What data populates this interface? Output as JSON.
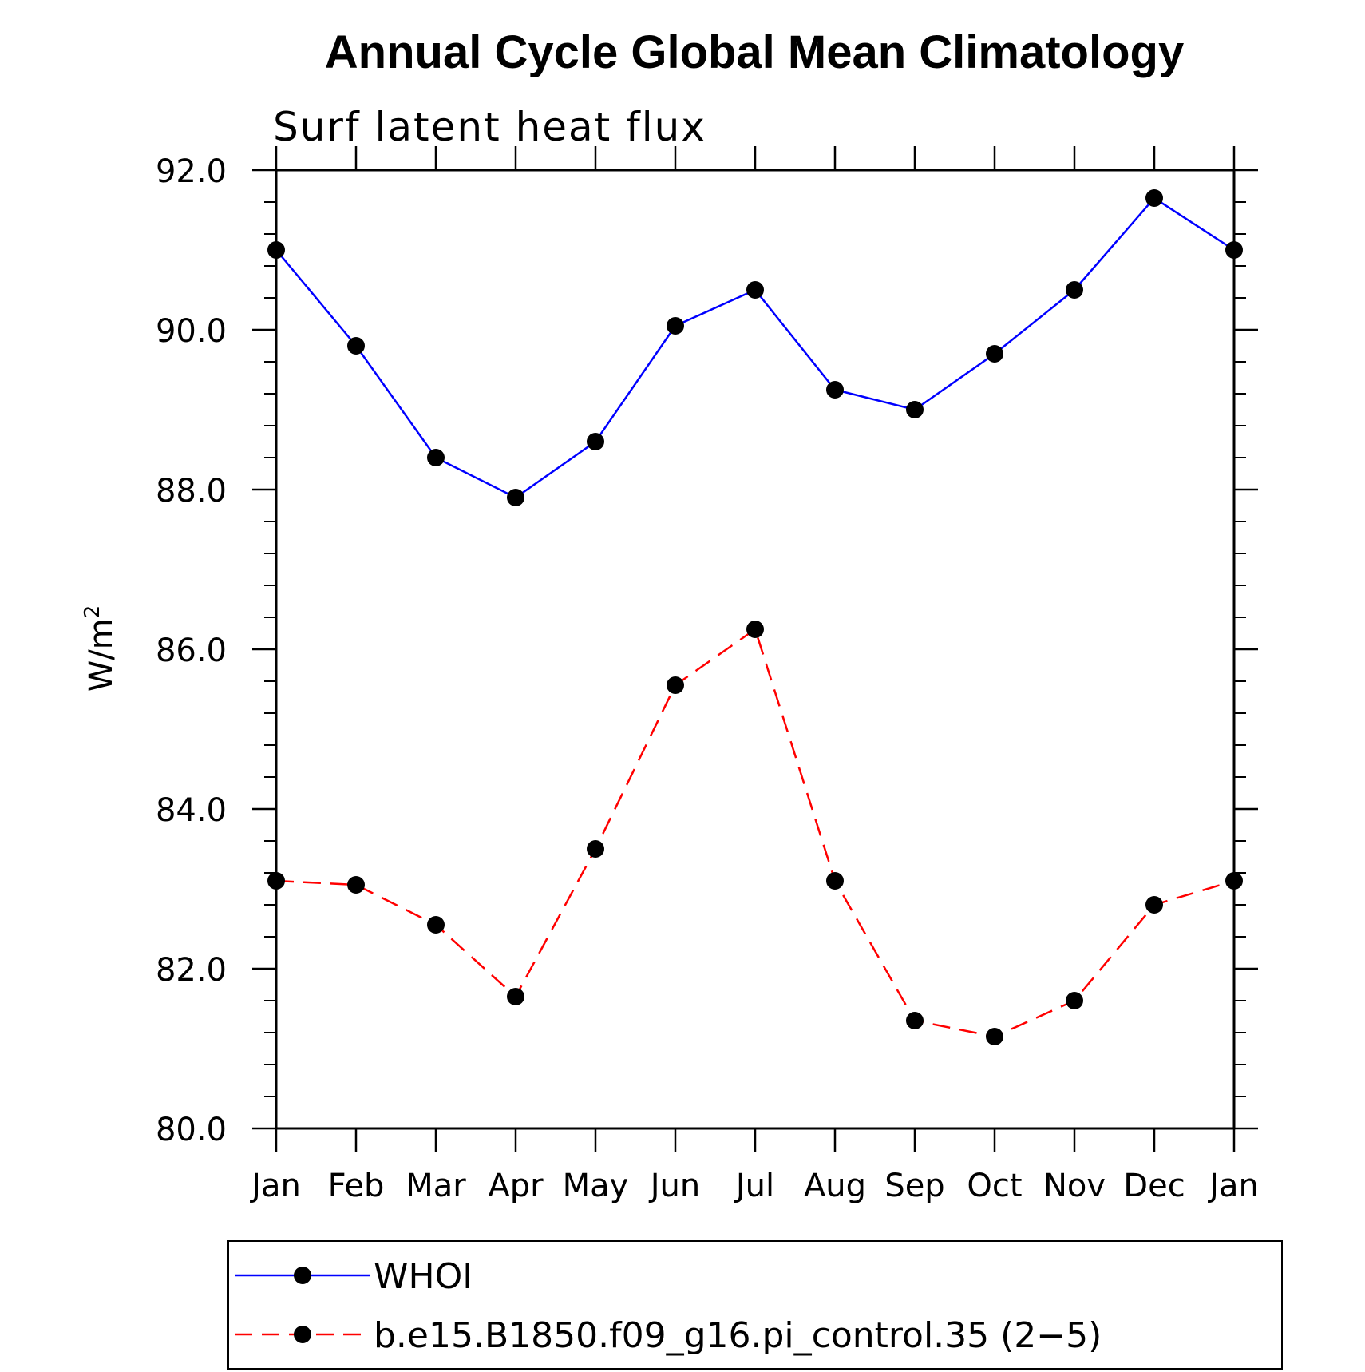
{
  "chart_data": {
    "type": "line",
    "title": "Annual Cycle Global Mean Climatology",
    "subtitle": "Surf latent heat flux",
    "ylabel": "W/m",
    "ylabel_superscript": "2",
    "xlabel": "",
    "categories": [
      "Jan",
      "Feb",
      "Mar",
      "Apr",
      "May",
      "Jun",
      "Jul",
      "Aug",
      "Sep",
      "Oct",
      "Nov",
      "Dec",
      "Jan"
    ],
    "ylim": [
      80.0,
      92.0
    ],
    "yticks": [
      "80.0",
      "82.0",
      "84.0",
      "86.0",
      "88.0",
      "90.0",
      "92.0"
    ],
    "grid": false,
    "legend_position": "bottom",
    "series": [
      {
        "name": "WHOI",
        "color": "#0000ff",
        "dash": "solid",
        "marker": "filled-circle",
        "values": [
          91.0,
          89.8,
          88.4,
          87.9,
          88.6,
          90.05,
          90.5,
          89.25,
          89.0,
          89.7,
          90.5,
          91.65,
          91.0
        ]
      },
      {
        "name": "b.e15.B1850.f09_g16.pi_control.35 (2−5)",
        "color": "#ff0000",
        "dash": "dashed",
        "marker": "filled-circle",
        "values": [
          83.1,
          83.05,
          82.55,
          81.65,
          83.5,
          85.55,
          86.25,
          83.1,
          81.35,
          81.15,
          81.6,
          82.8,
          83.1
        ]
      }
    ]
  }
}
